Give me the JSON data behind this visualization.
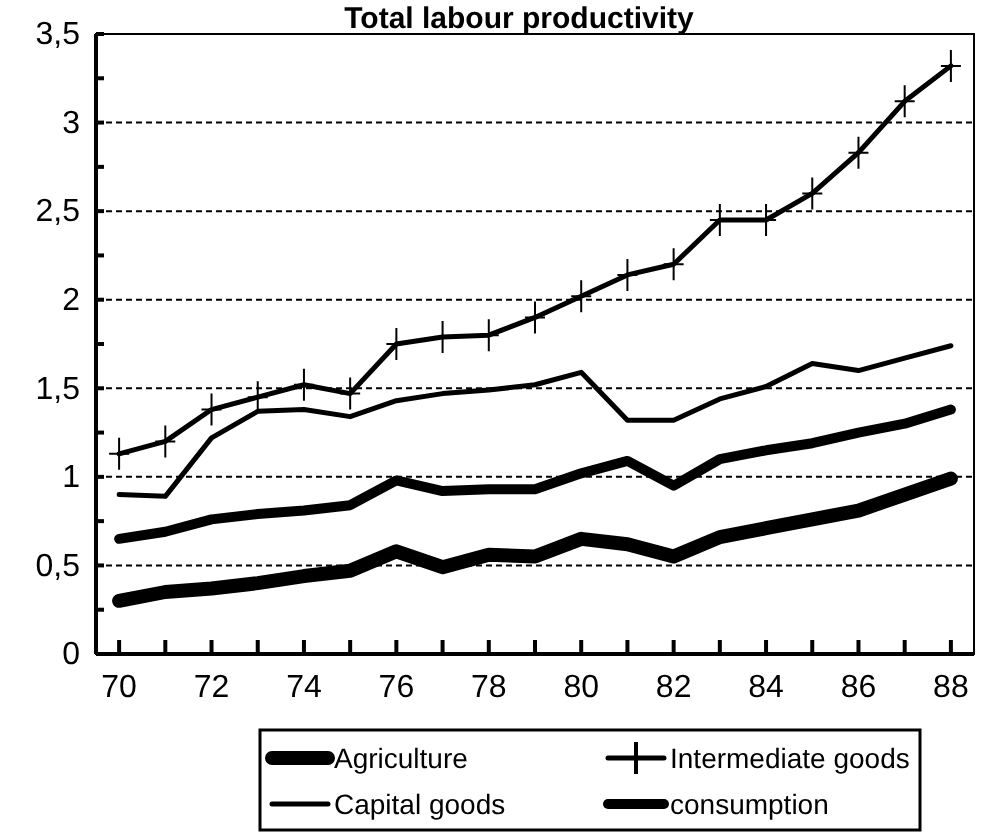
{
  "chart_data": {
    "type": "line",
    "title": "Total labour productivity",
    "x": [
      70,
      71,
      72,
      73,
      74,
      75,
      76,
      77,
      78,
      79,
      80,
      81,
      82,
      83,
      84,
      85,
      86,
      87,
      88
    ],
    "xlim": [
      69.5,
      88.5
    ],
    "xticks": [
      70,
      {
        "value": 71,
        "label": null
      },
      72,
      {
        "value": 73,
        "label": null
      },
      74,
      {
        "value": 75,
        "label": null
      },
      76,
      {
        "value": 77,
        "label": null
      },
      78,
      {
        "value": 79,
        "label": null
      },
      80,
      {
        "value": 81,
        "label": null
      },
      82,
      {
        "value": 83,
        "label": null
      },
      84,
      {
        "value": 85,
        "label": null
      },
      86,
      {
        "value": 87,
        "label": null
      },
      88
    ],
    "ylim": [
      0,
      3.5
    ],
    "yticks": [
      0,
      {
        "value": 0.25,
        "label": null
      },
      {
        "value": 0.5,
        "label": "0,5"
      },
      {
        "value": 0.75,
        "label": null
      },
      1,
      {
        "value": 1.25,
        "label": null
      },
      {
        "value": 1.5,
        "label": "1,5"
      },
      {
        "value": 1.75,
        "label": null
      },
      2,
      {
        "value": 2.25,
        "label": null
      },
      {
        "value": 2.5,
        "label": "2,5"
      },
      {
        "value": 2.75,
        "label": null
      },
      3,
      {
        "value": 3.25,
        "label": null
      },
      {
        "value": 3.5,
        "label": "3,5"
      }
    ],
    "grid": "y",
    "legend": "bottom",
    "line_style": "solid",
    "series": [
      {
        "name": "Agriculture",
        "color": "#000000",
        "marker": "none",
        "values": [
          0.3,
          0.35,
          0.37,
          0.4,
          0.44,
          0.47,
          0.58,
          0.49,
          0.56,
          0.55,
          0.65,
          0.62,
          0.55,
          0.66,
          0.71,
          0.76,
          0.81,
          0.9,
          0.99
        ]
      },
      {
        "name": "Intermediate goods",
        "color": "#000000",
        "marker": "cross",
        "values": [
          1.13,
          1.2,
          1.38,
          1.45,
          1.52,
          1.47,
          1.75,
          1.79,
          1.8,
          1.9,
          2.02,
          2.14,
          2.2,
          2.45,
          2.45,
          2.6,
          2.83,
          3.12,
          3.32
        ]
      },
      {
        "name": "Capital goods",
        "color": "#000000",
        "marker": "none",
        "values": [
          0.9,
          0.89,
          1.22,
          1.37,
          1.38,
          1.34,
          1.43,
          1.47,
          1.49,
          1.52,
          1.59,
          1.32,
          1.32,
          1.44,
          1.51,
          1.64,
          1.6,
          1.67,
          1.74
        ]
      },
      {
        "name": "consumption",
        "color": "#000000",
        "marker": "none",
        "values": [
          0.65,
          0.69,
          0.76,
          0.79,
          0.81,
          0.84,
          0.98,
          0.92,
          0.93,
          0.93,
          1.02,
          1.09,
          0.95,
          1.1,
          1.15,
          1.19,
          1.25,
          1.3,
          1.38
        ]
      }
    ]
  }
}
